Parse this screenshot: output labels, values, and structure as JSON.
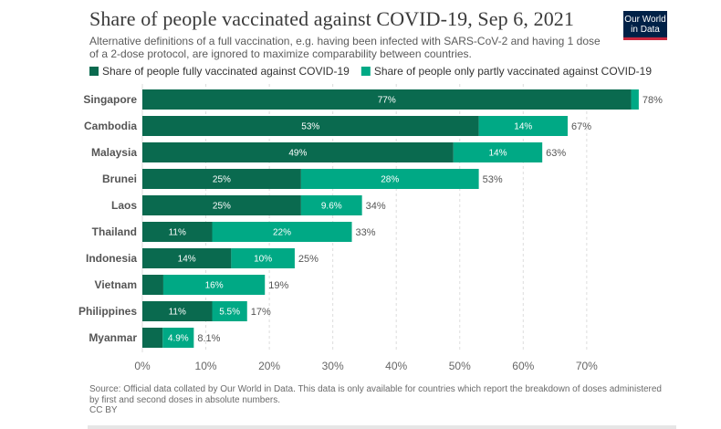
{
  "title": "Share of people vaccinated against COVID-19, Sep 6, 2021",
  "subtitle": "Alternative definitions of a full vaccination, e.g. having been infected with SARS-CoV-2 and having 1 dose of a 2-dose protocol, are ignored to maximize comparability between countries.",
  "logo": {
    "line1": "Our World",
    "line2": "in Data"
  },
  "source": {
    "line1": "Source: Official data collated by Our World in Data. This data is only available for countries which report the breakdown of doses administered by first and second doses in absolute numbers.",
    "line2": "CC BY"
  },
  "colors": {
    "fully": "#0a6a4f",
    "partly": "#00a985",
    "grid": "#dddddd",
    "label": "#555555"
  },
  "chart_data": {
    "type": "bar",
    "orientation": "horizontal",
    "stacked": true,
    "title": "Share of people vaccinated against COVID-19, Sep 6, 2021",
    "categories": [
      "Singapore",
      "Cambodia",
      "Malaysia",
      "Brunei",
      "Laos",
      "Thailand",
      "Indonesia",
      "Vietnam",
      "Philippines",
      "Myanmar"
    ],
    "series": [
      {
        "name": "Share of people fully vaccinated against COVID-19",
        "values": [
          77,
          53,
          49,
          25,
          25,
          11,
          14,
          3.3,
          11,
          3.2
        ],
        "labels": [
          "77%",
          "53%",
          "49%",
          "25%",
          "25%",
          "11%",
          "14%",
          "",
          "11%",
          ""
        ]
      },
      {
        "name": "Share of people only partly vaccinated against COVID-19",
        "values": [
          1.2,
          14,
          14,
          28,
          9.6,
          22,
          10,
          16,
          5.5,
          4.9
        ],
        "labels": [
          "",
          "14%",
          "14%",
          "28%",
          "9.6%",
          "22%",
          "10%",
          "16%",
          "5.5%",
          "4.9%"
        ]
      }
    ],
    "totals": [
      "78%",
      "67%",
      "63%",
      "53%",
      "34%",
      "33%",
      "25%",
      "19%",
      "17%",
      "8.1%"
    ],
    "xticks": [
      0,
      10,
      20,
      30,
      40,
      50,
      60,
      70
    ],
    "xtick_labels": [
      "0%",
      "10%",
      "20%",
      "30%",
      "40%",
      "50%",
      "60%",
      "70%"
    ],
    "xlim": [
      0,
      78
    ],
    "legend": "top-left",
    "grid": true
  }
}
